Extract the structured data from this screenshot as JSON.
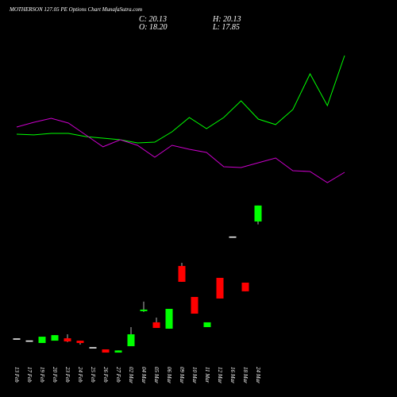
{
  "chart_data": {
    "type": "candlestick",
    "title": "MOTHERSON 127.05 PE Options Chart MunafaSutra.com",
    "ohlc_labels": [
      "C: 20.13",
      "H: 20.13",
      "O: 18.20",
      "L: 17.85"
    ],
    "categories": [
      "13 Feb",
      "17 Feb",
      "19 Feb",
      "20 Feb",
      "23 Feb",
      "24 Feb",
      "25 Feb",
      "26 Feb",
      "27 Feb",
      "02 Mar",
      "04 Mar",
      "05 Mar",
      "06 Mar",
      "09 Mar",
      "10 Mar",
      "11 Mar",
      "12 Mar",
      "16 Mar",
      "18 Mar",
      "24 Mar"
    ],
    "open": [
      4.05,
      3.8,
      3.5,
      3.78,
      4.07,
      3.78,
      2.99,
      2.73,
      2.34,
      3.11,
      7.35,
      6.0,
      5.23,
      12.82,
      9.07,
      5.42,
      11.38,
      16.38,
      10.8,
      18.2
    ],
    "high": [
      4.05,
      3.8,
      4.26,
      4.45,
      4.55,
      3.78,
      2.99,
      2.73,
      2.6,
      5.42,
      8.5,
      6.57,
      7.63,
      13.2,
      9.07,
      6.0,
      11.38,
      16.38,
      10.8,
      20.13
    ],
    "low": [
      4.05,
      3.8,
      3.5,
      3.78,
      3.6,
      3.3,
      2.99,
      2.34,
      2.34,
      3.11,
      7.25,
      5.32,
      5.23,
      10.9,
      7.05,
      5.42,
      8.88,
      16.38,
      9.75,
      17.85
    ],
    "close": [
      4.05,
      3.8,
      4.26,
      4.45,
      3.69,
      3.5,
      2.99,
      2.34,
      2.6,
      4.55,
      7.54,
      5.32,
      7.63,
      10.9,
      7.05,
      6.0,
      8.88,
      16.38,
      9.75,
      20.13
    ],
    "up_color": "#00ff00",
    "down_color": "#ff0000",
    "lines": [
      {
        "color": "#00ff00",
        "values": [
          28.76,
          28.67,
          28.86,
          28.86,
          28.47,
          28.28,
          28.09,
          27.7,
          27.8,
          29.05,
          30.78,
          29.43,
          30.78,
          32.8,
          30.59,
          29.92,
          31.74,
          36.06,
          32.22,
          38.27
        ]
      },
      {
        "color": "#cc00cc",
        "values": [
          29.63,
          30.2,
          30.68,
          30.11,
          28.67,
          27.23,
          28.09,
          27.42,
          25.98,
          27.42,
          26.94,
          26.55,
          24.82,
          24.73,
          25.3,
          25.88,
          24.34,
          24.25,
          22.9,
          24.15
        ]
      }
    ],
    "ylim": [
      1,
      40
    ]
  }
}
